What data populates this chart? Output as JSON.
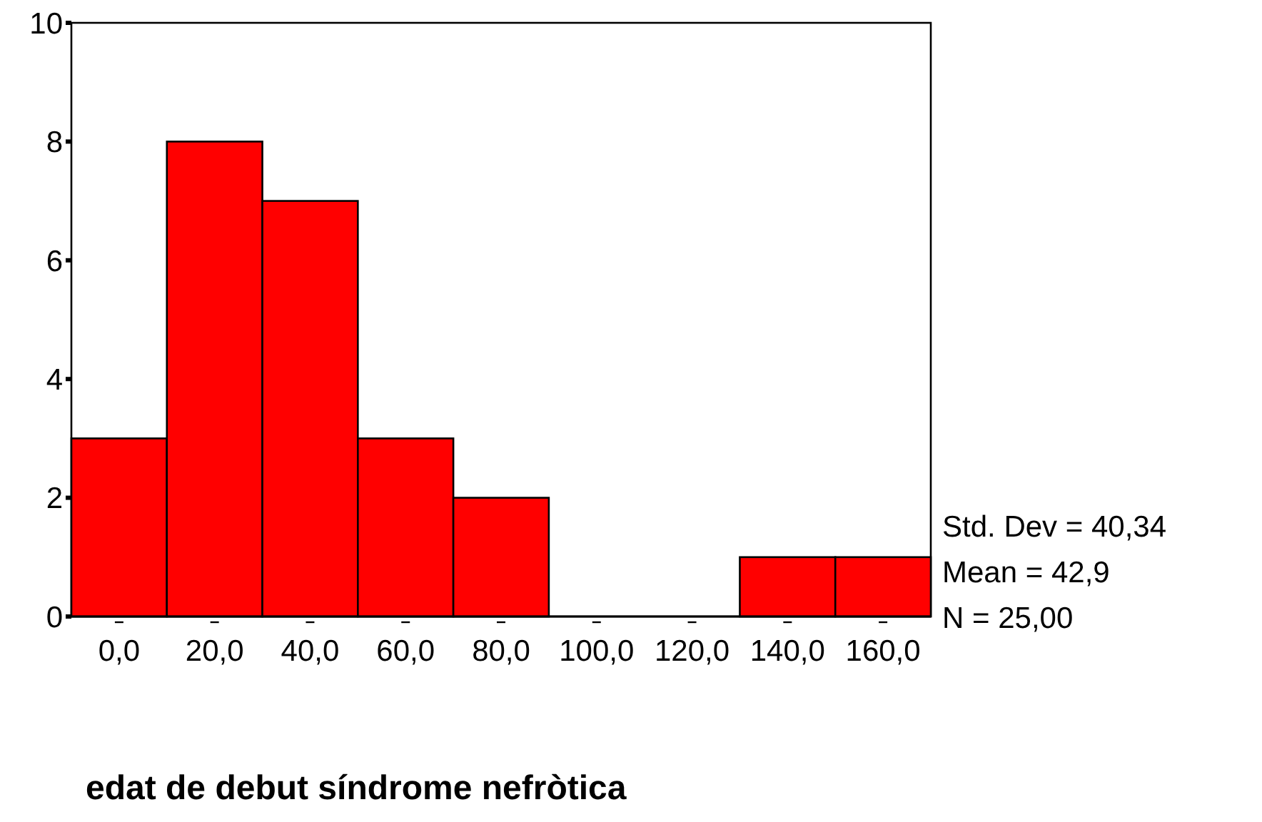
{
  "chart_data": {
    "type": "histogram",
    "xlabel": "edat de debut síndrome nefròtica",
    "bins": [
      -10,
      10,
      30,
      50,
      70,
      90,
      110,
      130,
      150,
      170
    ],
    "values": [
      3,
      8,
      7,
      3,
      2,
      0,
      0,
      1,
      1
    ],
    "color": "#ff0000",
    "xlim": [
      -10,
      170
    ],
    "xticks": [
      {
        "value": 0,
        "label": "0,0"
      },
      {
        "value": 20,
        "label": "20,0"
      },
      {
        "value": 40,
        "label": "40,0"
      },
      {
        "value": 60,
        "label": "60,0"
      },
      {
        "value": 80,
        "label": "80,0"
      },
      {
        "value": 100,
        "label": "100,0"
      },
      {
        "value": 120,
        "label": "120,0"
      },
      {
        "value": 140,
        "label": "140,0"
      },
      {
        "value": 160,
        "label": "160,0"
      }
    ],
    "ylim": [
      0,
      10
    ],
    "yticks": [
      0,
      2,
      4,
      6,
      8,
      10
    ],
    "annotations": [
      "Std. Dev = 40,34",
      "Mean = 42,9",
      "N = 25,00"
    ]
  }
}
